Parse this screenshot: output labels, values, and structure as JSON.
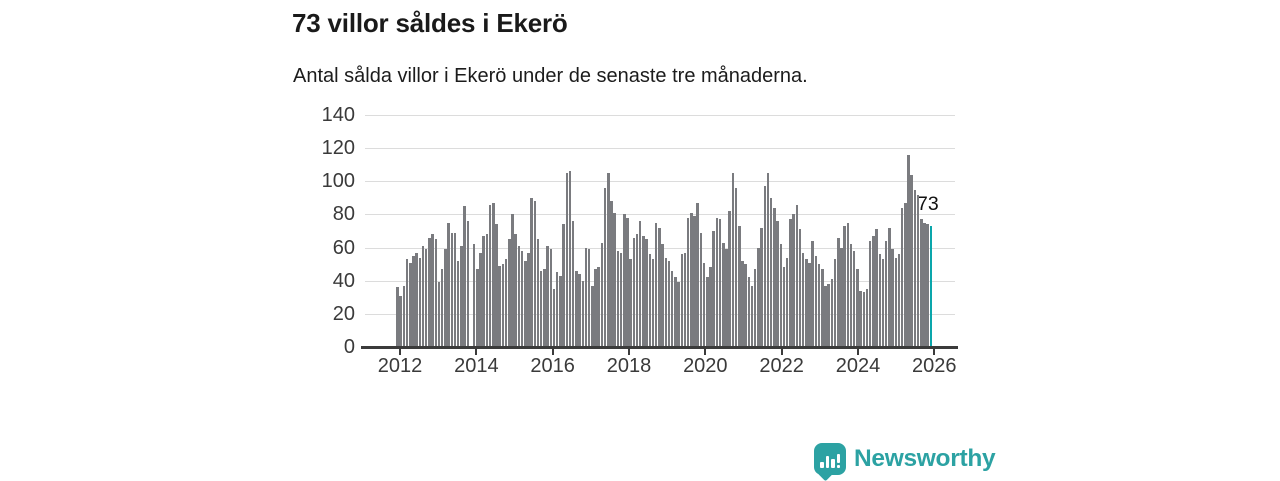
{
  "title": "73 villor såldes i Ekerö",
  "subtitle": "Antal sålda villor i Ekerö under de senaste tre månaderna.",
  "chart_data": {
    "type": "bar",
    "title": "73 villor såldes i Ekerö",
    "subtitle": "Antal sålda villor i Ekerö under de senaste tre månaderna.",
    "xlabel": "",
    "ylabel": "",
    "ylim": [
      0,
      140
    ],
    "yticks": [
      0,
      20,
      40,
      60,
      80,
      100,
      120,
      140
    ],
    "xticks": [
      "2012",
      "2014",
      "2016",
      "2018",
      "2020",
      "2022",
      "2024",
      "2026"
    ],
    "grid": true,
    "legend": false,
    "frequency": "monthly",
    "values": [
      36,
      31,
      37,
      53,
      51,
      55,
      57,
      54,
      61,
      59,
      66,
      68,
      65,
      39,
      47,
      59,
      75,
      69,
      69,
      52,
      61,
      85,
      76,
      0,
      62,
      47,
      57,
      67,
      68,
      86,
      87,
      74,
      49,
      50,
      53,
      65,
      80,
      68,
      61,
      58,
      52,
      57,
      90,
      88,
      65,
      46,
      47,
      61,
      59,
      35,
      45,
      43,
      74,
      105,
      106,
      76,
      46,
      44,
      40,
      60,
      59,
      37,
      47,
      48,
      63,
      96,
      105,
      88,
      81,
      58,
      57,
      80,
      78,
      53,
      66,
      68,
      76,
      67,
      65,
      56,
      53,
      75,
      72,
      62,
      54,
      52,
      46,
      42,
      39,
      56,
      57,
      78,
      81,
      79,
      87,
      69,
      51,
      42,
      48,
      70,
      78,
      77,
      63,
      59,
      82,
      105,
      96,
      73,
      52,
      50,
      42,
      37,
      47,
      60,
      72,
      97,
      105,
      90,
      84,
      76,
      62,
      48,
      54,
      77,
      80,
      86,
      71,
      57,
      53,
      51,
      64,
      55,
      50,
      47,
      37,
      38,
      41,
      53,
      66,
      60,
      73,
      75,
      62,
      58,
      47,
      34,
      33,
      35,
      64,
      67,
      71,
      56,
      53,
      64,
      72,
      59,
      54,
      56,
      84,
      87,
      116,
      104,
      95,
      92,
      77,
      75,
      74,
      73
    ],
    "highlight_index": 167,
    "highlight_value": 73,
    "highlight_label": "73",
    "bar_color": "#7a7b7f",
    "highlight_color": "#0aa6ab",
    "grid_color": "#dcdcdc",
    "axis_color": "#3b3b3b",
    "tick_label_color": "#3a3a3a"
  },
  "branding": {
    "name": "Newsworthy",
    "logo_icon": "speech-bubble-bar-chart-icon",
    "color": "#2ca2a3"
  }
}
